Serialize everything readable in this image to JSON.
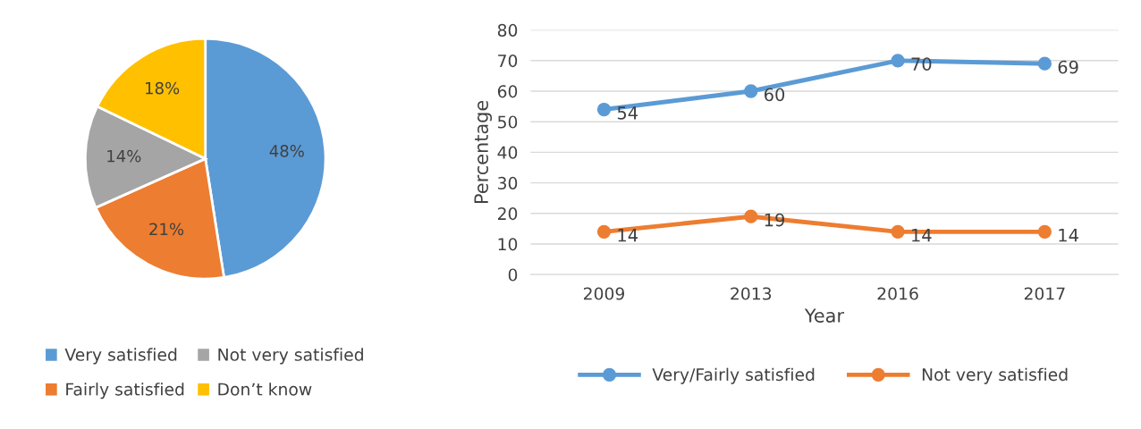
{
  "chart_data": [
    {
      "type": "pie",
      "categories": [
        "Very satisfied",
        "Fairly satisfied",
        "Not very satisfied",
        "Don’t know"
      ],
      "values": [
        48,
        21,
        14,
        18
      ],
      "colors": [
        "#5b9bd5",
        "#ed7d31",
        "#a5a5a5",
        "#ffc000"
      ],
      "value_labels": [
        "48%",
        "21%",
        "14%",
        "18%"
      ],
      "legend": "bottom"
    },
    {
      "type": "line",
      "xlabel": "Year",
      "ylabel": "Percentage",
      "categories": [
        "2009",
        "2013",
        "2016",
        "2017"
      ],
      "series": [
        {
          "name": "Very/Fairly satisfied",
          "color": "#5b9bd5",
          "values": [
            54,
            60,
            70,
            69
          ]
        },
        {
          "name": "Not very satisfied",
          "color": "#ed7d31",
          "values": [
            14,
            19,
            14,
            14
          ]
        }
      ],
      "ylim": [
        0,
        80
      ],
      "yticks": [
        0,
        10,
        20,
        30,
        40,
        50,
        60,
        70,
        80
      ],
      "grid": "y",
      "legend": "bottom",
      "marker": "circle",
      "line_style": "solid",
      "data_labels": true
    }
  ]
}
